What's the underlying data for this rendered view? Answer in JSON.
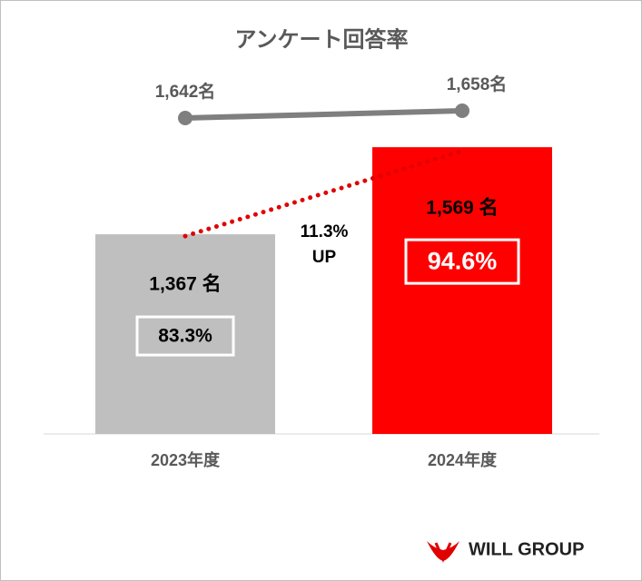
{
  "chart_data": {
    "type": "bar",
    "title": "アンケート回答率",
    "categories": [
      "2023年度",
      "2024年度"
    ],
    "series": [
      {
        "type": "bar",
        "values": [
          1367,
          1569
        ],
        "value_labels": [
          "1,367 名",
          "1,569 名"
        ],
        "colors": [
          "#bfbfbf",
          "#ff0000"
        ]
      },
      {
        "type": "line",
        "axis": "y2",
        "values": [
          1642,
          1658
        ],
        "value_labels": [
          "1,642名",
          "1,658名"
        ],
        "color": "#7f7f7f"
      }
    ],
    "rate_labels": [
      "83.3%",
      "94.6%"
    ],
    "annotation": [
      "11.3%",
      "UP"
    ],
    "ylim": [
      904,
      1784
    ],
    "y2lim": [
      946,
      1782
    ],
    "trend_color": "#e00000"
  },
  "logo": "WILL GROUP"
}
